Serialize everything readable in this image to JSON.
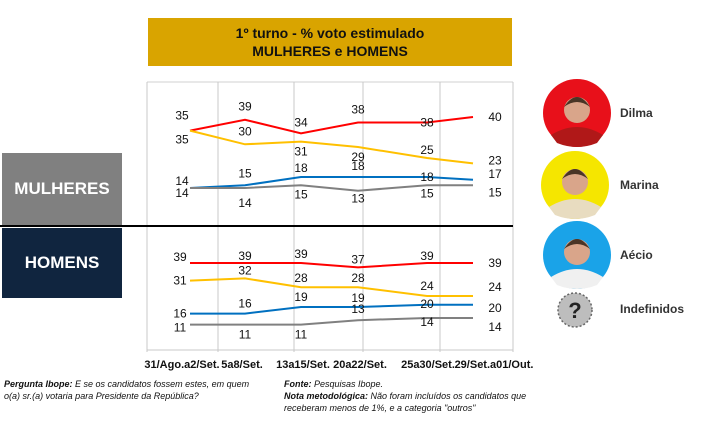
{
  "title": {
    "line1": "1º turno - % voto estimulado",
    "line2": "MULHERES e HOMENS"
  },
  "segments": {
    "women": "MULHERES",
    "men": "HOMENS"
  },
  "candidates": [
    {
      "name": "Dilma",
      "color": "#ff0000",
      "photo_bg": "#e8101a",
      "icon": "dilma-photo"
    },
    {
      "name": "Marina",
      "color": "#ffc000",
      "photo_bg": "#f5e600",
      "icon": "marina-photo"
    },
    {
      "name": "Aécio",
      "color": "#0070c0",
      "photo_bg": "#1aa3e8",
      "icon": "aecio-photo"
    },
    {
      "name": "Indefinidos",
      "color": "#808080",
      "photo_bg": "#bdbdbd",
      "icon": "question-mark-icon"
    }
  ],
  "chart_data": [
    {
      "type": "line",
      "title": "MULHERES",
      "categories": [
        "31/Ago.a2/Set.",
        "5a8/Set.",
        "13a15/Set.",
        "20a22/Set.",
        "25a30/Set.",
        "29/Set.a01/Out."
      ],
      "series": [
        {
          "name": "Dilma",
          "values": [
            35,
            39,
            34,
            38,
            38,
            40
          ]
        },
        {
          "name": "Marina",
          "values": [
            35,
            30,
            31,
            29,
            25,
            23
          ]
        },
        {
          "name": "Aécio",
          "values": [
            14,
            15,
            18,
            18,
            18,
            17
          ]
        },
        {
          "name": "Indefinidos",
          "values": [
            14,
            14,
            15,
            13,
            15,
            15
          ]
        }
      ],
      "grid": "vertical"
    },
    {
      "type": "line",
      "title": "HOMENS",
      "categories": [
        "31/Ago.a2/Set.",
        "5a8/Set.",
        "13a15/Set.",
        "20a22/Set.",
        "25a30/Set.",
        "29/Set.a01/Out."
      ],
      "series": [
        {
          "name": "Dilma",
          "values": [
            39,
            39,
            39,
            37,
            39,
            39
          ]
        },
        {
          "name": "Marina",
          "values": [
            31,
            32,
            28,
            28,
            24,
            24
          ]
        },
        {
          "name": "Aécio",
          "values": [
            16,
            16,
            19,
            19,
            20,
            20
          ]
        },
        {
          "name": "Indefinidos",
          "values": [
            11,
            11,
            11,
            13,
            14,
            14
          ]
        }
      ],
      "grid": "vertical"
    }
  ],
  "footer": {
    "question_label": "Pergunta Ibope:",
    "question_text": "E se os candidatos fossem estes, em quem o(a) sr.(a) votaria para Presidente da República?",
    "source_label": "Fonte:",
    "source_text": "Pesquisas Ibope.",
    "note_label": "Nota metodológica:",
    "note_text": "Não foram incluídos os candidatos que receberam menos de 1%, e a categoria \"outros\""
  }
}
